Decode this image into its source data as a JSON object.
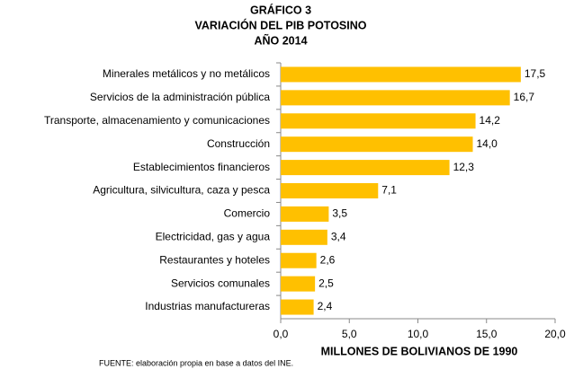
{
  "chart_data": {
    "type": "bar",
    "orientation": "horizontal",
    "title": [
      "GRÁFICO 3",
      "VARIACIÓN DEL PIB POTOSINO",
      "AÑO 2014"
    ],
    "categories": [
      "Minerales metálicos y no metálicos",
      "Servicios de la administración pública",
      "Transporte, almacenamiento y comunicaciones",
      "Construcción",
      "Establecimientos financieros",
      "Agricultura, silvicultura, caza y pesca",
      "Comercio",
      "Electricidad, gas y agua",
      "Restaurantes y hoteles",
      "Servicios comunales",
      "Industrias manufactureras"
    ],
    "values": [
      17.5,
      16.7,
      14.2,
      14.0,
      12.3,
      7.1,
      3.5,
      3.4,
      2.6,
      2.5,
      2.4
    ],
    "value_labels": [
      "17,5",
      "16,7",
      "14,2",
      "14,0",
      "12,3",
      "7,1",
      "3,5",
      "3,4",
      "2,6",
      "2,5",
      "2,4"
    ],
    "color": "#ffc000",
    "xlim": [
      0,
      20
    ],
    "xticks": [
      {
        "value": 0,
        "label": "0,0"
      },
      {
        "value": 5,
        "label": "5,0"
      },
      {
        "value": 10,
        "label": "10,0"
      },
      {
        "value": 15,
        "label": "15,0"
      },
      {
        "value": 20,
        "label": "20,0"
      }
    ],
    "xlabel": "MILLONES DE BOLIVIANOS DE 1990",
    "source": "FUENTE: elaboración propia en base a datos del INE.",
    "grid": false
  }
}
